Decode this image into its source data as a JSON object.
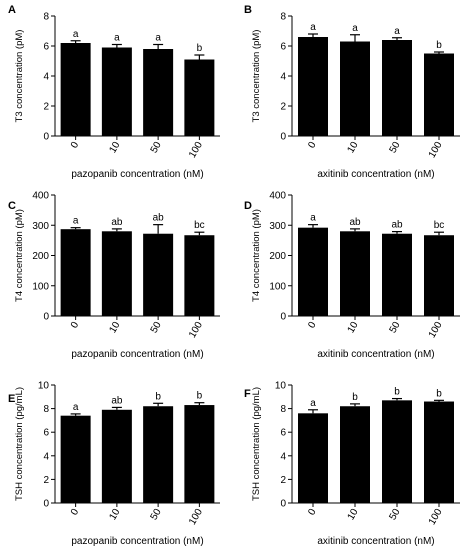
{
  "chart_data": [
    {
      "type": "bar",
      "panel_label": "A",
      "ylabel": "T3 concentration  (pM)",
      "xlabel": "pazopanib concentration (nM)",
      "categories": [
        "0",
        "10",
        "50",
        "100"
      ],
      "values": [
        6.2,
        5.9,
        5.8,
        5.1
      ],
      "errors": [
        0.15,
        0.2,
        0.3,
        0.3
      ],
      "sig_letters": [
        "a",
        "a",
        "a",
        "b"
      ],
      "ylim": [
        0,
        8
      ],
      "yticks": [
        "0",
        "2",
        "4",
        "6",
        "8"
      ],
      "grid": false,
      "legend": "none"
    },
    {
      "type": "bar",
      "panel_label": "B",
      "ylabel": "T3 concentration  (pM)",
      "xlabel": "axitinib concentration (nM)",
      "categories": [
        "0",
        "10",
        "50",
        "100"
      ],
      "values": [
        6.6,
        6.3,
        6.4,
        5.5
      ],
      "errors": [
        0.2,
        0.45,
        0.15,
        0.1
      ],
      "sig_letters": [
        "a",
        "a",
        "a",
        "b"
      ],
      "ylim": [
        0,
        8
      ],
      "yticks": [
        "0",
        "2",
        "4",
        "6",
        "8"
      ],
      "grid": false,
      "legend": "none"
    },
    {
      "type": "bar",
      "panel_label": "C",
      "ylabel": "T4 concentration  (pM)",
      "xlabel": "pazopanib concentration (nM)",
      "categories": [
        "0",
        "10",
        "50",
        "100"
      ],
      "values": [
        287,
        280,
        272,
        267
      ],
      "errors": [
        5,
        8,
        30,
        10
      ],
      "sig_letters": [
        "a",
        "ab",
        "ab",
        "bc"
      ],
      "ylim": [
        0,
        400
      ],
      "yticks": [
        "0",
        "100",
        "200",
        "300",
        "400"
      ],
      "grid": false,
      "legend": "none"
    },
    {
      "type": "bar",
      "panel_label": "D",
      "ylabel": "T4 concentration  (pM)",
      "xlabel": "axitinib concentration (nM)",
      "categories": [
        "0",
        "10",
        "50",
        "100"
      ],
      "values": [
        292,
        280,
        272,
        267
      ],
      "errors": [
        10,
        8,
        7,
        10
      ],
      "sig_letters": [
        "a",
        "ab",
        "ab",
        "bc"
      ],
      "ylim": [
        0,
        400
      ],
      "yticks": [
        "0",
        "100",
        "200",
        "300",
        "400"
      ],
      "grid": false,
      "legend": "none"
    },
    {
      "type": "bar",
      "panel_label": "E",
      "ylabel": "TSH concentration  (pg/mL)",
      "xlabel": "pazopanib concentration (nM)",
      "categories": [
        "0",
        "10",
        "50",
        "100"
      ],
      "values": [
        7.4,
        7.9,
        8.2,
        8.3
      ],
      "errors": [
        0.15,
        0.2,
        0.25,
        0.2
      ],
      "sig_letters": [
        "a",
        "ab",
        "b",
        "b"
      ],
      "ylim": [
        0,
        10
      ],
      "yticks": [
        "0",
        "2",
        "4",
        "6",
        "8",
        "10"
      ],
      "grid": false,
      "legend": "none"
    },
    {
      "type": "bar",
      "panel_label": "F",
      "ylabel": "TSH concentration  (pg/mL)",
      "xlabel": "axitinib concentration (nM)",
      "categories": [
        "0",
        "10",
        "50",
        "100"
      ],
      "values": [
        7.6,
        8.2,
        8.7,
        8.6
      ],
      "errors": [
        0.3,
        0.2,
        0.15,
        0.1
      ],
      "sig_letters": [
        "a",
        "b",
        "b",
        "b"
      ],
      "ylim": [
        0,
        10
      ],
      "yticks": [
        "0",
        "2",
        "4",
        "6",
        "8",
        "10"
      ],
      "grid": false,
      "legend": "none"
    }
  ],
  "colors": {
    "bar": "#000000",
    "axis": "#000000",
    "background": "#ffffff"
  }
}
